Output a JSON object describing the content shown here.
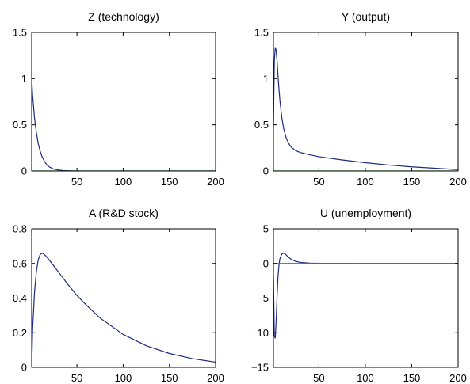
{
  "chart_data": [
    {
      "type": "line",
      "title": "Z (technology)",
      "xlim": [
        1,
        200
      ],
      "ylim": [
        0,
        1.5
      ],
      "xticks": [
        50,
        100,
        150,
        200
      ],
      "yticks": [
        0,
        0.5,
        1,
        1.5
      ],
      "ytick_labels": [
        "0",
        "0.5",
        "1",
        "1.5"
      ],
      "series": [
        {
          "color": "#1f2a80",
          "x": [
            1,
            2,
            4,
            6,
            8,
            10,
            12,
            15,
            18,
            20,
            25,
            30,
            35,
            40,
            50,
            100,
            150,
            200
          ],
          "y": [
            1.0,
            0.82,
            0.58,
            0.42,
            0.3,
            0.22,
            0.16,
            0.1,
            0.06,
            0.045,
            0.02,
            0.01,
            0.004,
            0.002,
            0,
            0,
            0,
            0
          ]
        },
        {
          "color": "#1a9e1a",
          "x": [
            1,
            200
          ],
          "y": [
            0,
            0
          ]
        }
      ]
    },
    {
      "type": "line",
      "title": "Y (output)",
      "xlim": [
        1,
        200
      ],
      "ylim": [
        0,
        1.5
      ],
      "xticks": [
        50,
        100,
        150,
        200
      ],
      "yticks": [
        0,
        0.5,
        1,
        1.5
      ],
      "ytick_labels": [
        "0",
        "0.5",
        "1",
        "1.5"
      ],
      "series": [
        {
          "color": "#1f2a80",
          "x": [
            1,
            2,
            3,
            4,
            5,
            6,
            7,
            8,
            10,
            12,
            15,
            18,
            20,
            25,
            30,
            40,
            50,
            75,
            100,
            125,
            150,
            175,
            200
          ],
          "y": [
            0.5,
            1.2,
            1.34,
            1.3,
            1.18,
            1.02,
            0.88,
            0.76,
            0.58,
            0.46,
            0.35,
            0.29,
            0.26,
            0.22,
            0.2,
            0.175,
            0.155,
            0.12,
            0.09,
            0.065,
            0.045,
            0.03,
            0.015
          ]
        },
        {
          "color": "#1a9e1a",
          "x": [
            1,
            200
          ],
          "y": [
            0,
            0
          ]
        }
      ]
    },
    {
      "type": "line",
      "title": "A (R&D stock)",
      "xlim": [
        1,
        200
      ],
      "ylim": [
        0,
        0.8
      ],
      "xticks": [
        50,
        100,
        150,
        200
      ],
      "yticks": [
        0,
        0.2,
        0.4,
        0.6,
        0.8
      ],
      "ytick_labels": [
        "0",
        "0.2",
        "0.4",
        "0.6",
        "0.8"
      ],
      "series": [
        {
          "color": "#1f2a80",
          "x": [
            1,
            2,
            4,
            6,
            8,
            10,
            12,
            14,
            16,
            20,
            25,
            30,
            40,
            50,
            60,
            75,
            100,
            125,
            150,
            175,
            200
          ],
          "y": [
            0.0,
            0.22,
            0.43,
            0.55,
            0.62,
            0.65,
            0.66,
            0.655,
            0.645,
            0.62,
            0.585,
            0.55,
            0.48,
            0.415,
            0.36,
            0.285,
            0.19,
            0.125,
            0.08,
            0.05,
            0.03
          ]
        },
        {
          "color": "#1a9e1a",
          "x": [
            1,
            200
          ],
          "y": [
            0,
            0
          ]
        }
      ]
    },
    {
      "type": "line",
      "title": "U (unemployment)",
      "xlim": [
        1,
        200
      ],
      "ylim": [
        -15,
        5
      ],
      "xticks": [
        50,
        100,
        150,
        200
      ],
      "yticks": [
        -15,
        -10,
        -5,
        0,
        5
      ],
      "ytick_labels": [
        "−15",
        "−10",
        "−5",
        "0",
        "5"
      ],
      "series": [
        {
          "color": "#1f2a80",
          "x": [
            1,
            2,
            3,
            4,
            5,
            6,
            7,
            8,
            10,
            12,
            14,
            16,
            20,
            25,
            30,
            40,
            50,
            100,
            150,
            200
          ],
          "y": [
            -2.0,
            -10.5,
            -10.8,
            -8.0,
            -4.5,
            -1.8,
            -0.2,
            0.7,
            1.35,
            1.5,
            1.35,
            1.05,
            0.6,
            0.3,
            0.15,
            0.05,
            0.02,
            0.0,
            0.0,
            0.0
          ]
        },
        {
          "color": "#1a9e1a",
          "x": [
            1,
            200
          ],
          "y": [
            0,
            0
          ]
        }
      ]
    }
  ]
}
